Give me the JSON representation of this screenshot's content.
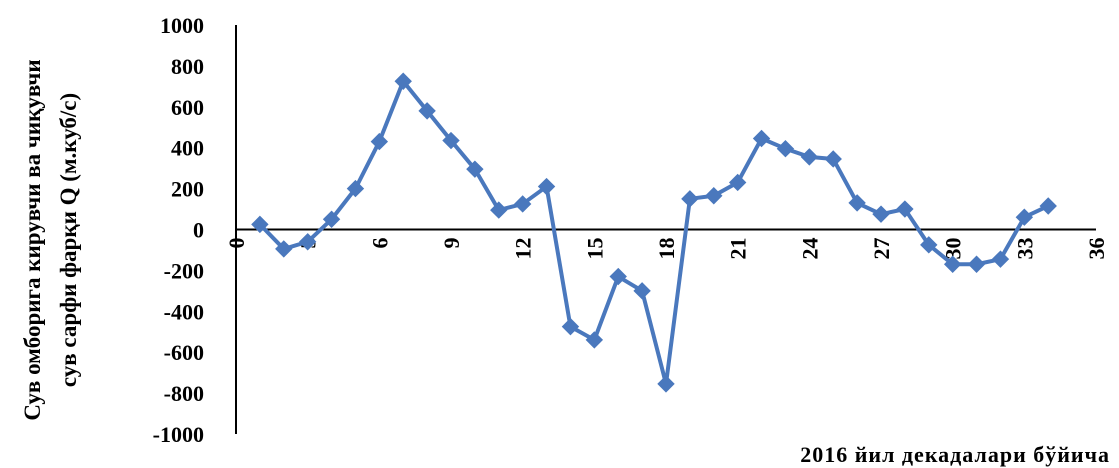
{
  "chart_data": {
    "type": "line",
    "xlabel": "2016 йил декадалари бўйича",
    "ylabel_lines": [
      "Сув омборига кирувчи ва чиқувчи",
      "сув сарфи фарқи Q (м.куб/с)"
    ],
    "xlim": [
      0,
      36
    ],
    "ylim": [
      -1000,
      1000
    ],
    "x_ticks": [
      0,
      3,
      6,
      9,
      12,
      15,
      18,
      21,
      24,
      27,
      30,
      33,
      36
    ],
    "y_ticks": [
      1000,
      800,
      600,
      400,
      200,
      0,
      -200,
      -400,
      -600,
      -800,
      -1000
    ],
    "grid": false,
    "series_color": "#4a78bd",
    "marker": "diamond",
    "series": [
      {
        "x": [
          1,
          2,
          3,
          4,
          5,
          6,
          7,
          8,
          9,
          10,
          11,
          12,
          13,
          14,
          15,
          16,
          17,
          18,
          19,
          20,
          21,
          22,
          23,
          24,
          25,
          26,
          27,
          28,
          29,
          30,
          31,
          32,
          33,
          34
        ],
        "values": [
          25,
          -95,
          -60,
          50,
          200,
          430,
          725,
          580,
          435,
          295,
          95,
          125,
          210,
          -475,
          -540,
          -230,
          -300,
          -755,
          150,
          165,
          230,
          445,
          395,
          355,
          345,
          130,
          75,
          100,
          -75,
          -170,
          -170,
          -145,
          60,
          115
        ]
      }
    ]
  }
}
